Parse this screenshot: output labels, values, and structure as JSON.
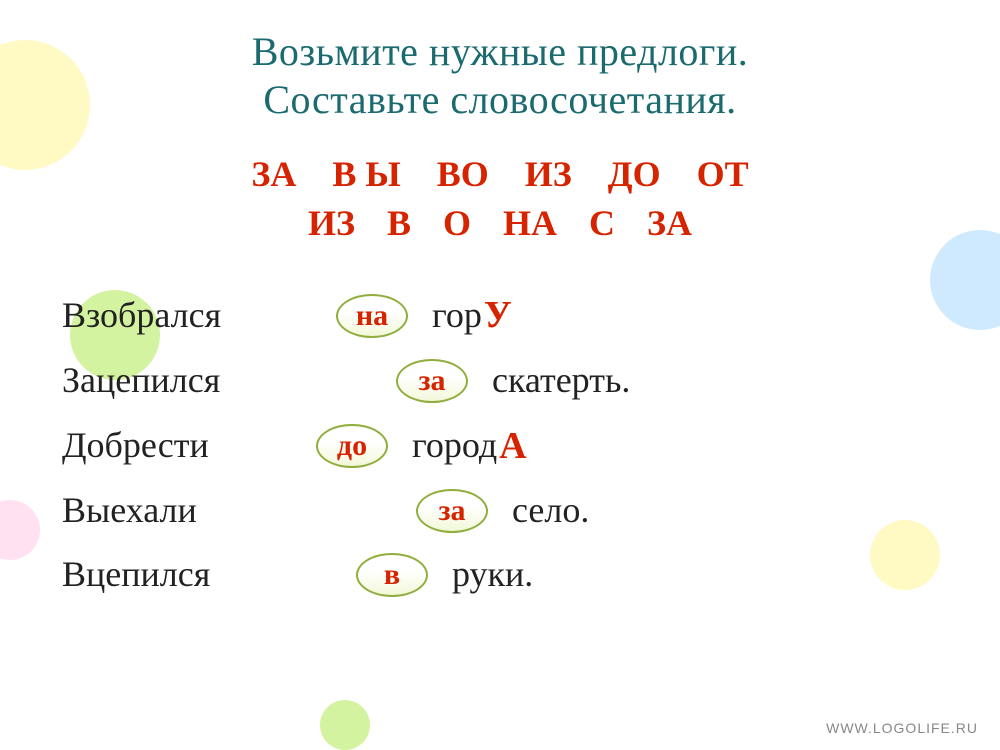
{
  "colors": {
    "title": "#1b6a6f",
    "red": "#d62300",
    "body": "#222222",
    "bubble_border": "#8fae3e",
    "watermark": "#888888",
    "bg1": "#fff9c4",
    "bg2": "#d4f3a0",
    "bg3": "#cfeaff",
    "bg4": "#ffe1f2"
  },
  "title": {
    "line1": "Возьмите нужные предлоги.",
    "line2": "Составьте словосочетания."
  },
  "prepositions": {
    "row1": [
      "ЗА",
      "В Ы",
      "ВО",
      "ИЗ",
      "ДО",
      "ОТ"
    ],
    "row2": [
      "ИЗ",
      "В",
      "О",
      "НА",
      "С",
      "ЗА"
    ]
  },
  "rows": [
    {
      "left": "Взобрался",
      "bubble": "на",
      "right": "гор",
      "ending": "У",
      "after": ""
    },
    {
      "left": "Зацепился",
      "bubble": "за",
      "right": "скатерть.",
      "ending": "",
      "after": ""
    },
    {
      "left": "Добрести",
      "bubble": "до",
      "right": "город",
      "ending": "А",
      "after": ""
    },
    {
      "left": "Выехали",
      "bubble": "за",
      "right": "село.",
      "ending": "",
      "after": ""
    },
    {
      "left": "Вцепился",
      "bubble": "в",
      "right": "руки.",
      "ending": "",
      "after": ""
    }
  ],
  "watermark": "WWW.LOGOLIFE.RU"
}
